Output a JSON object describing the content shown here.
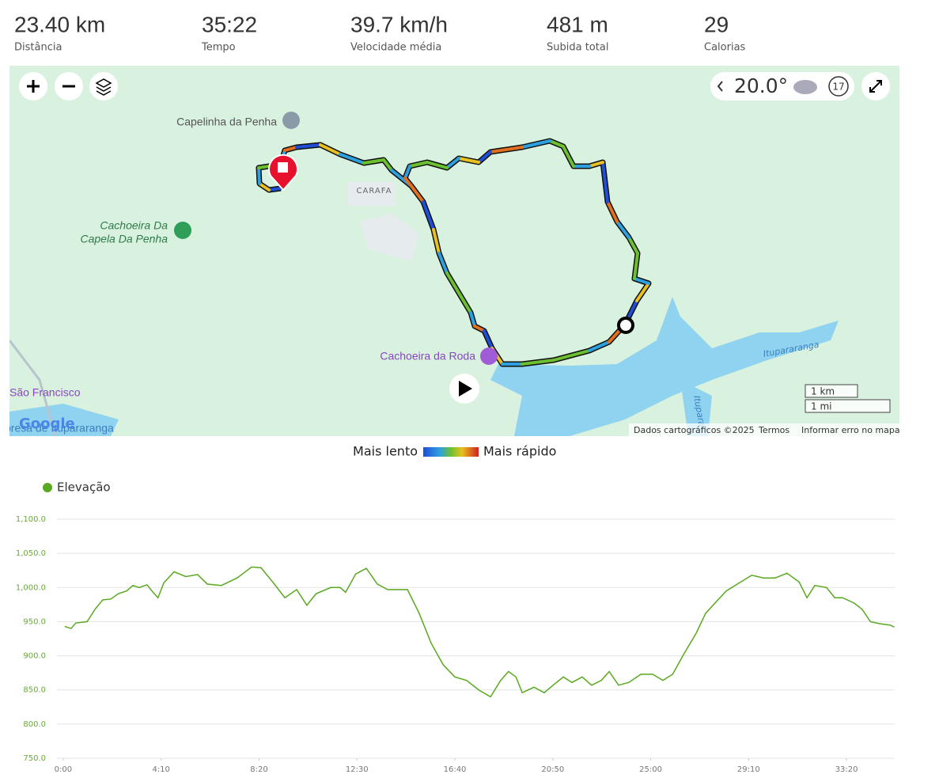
{
  "stats": [
    {
      "value": "23.40 km",
      "label": "Distância"
    },
    {
      "value": "35:22",
      "label": "Tempo"
    },
    {
      "value": "39.7 km/h",
      "label": "Velocidade média"
    },
    {
      "value": "481 m",
      "label": "Subida total"
    },
    {
      "value": "29",
      "label": "Calorias"
    }
  ],
  "map": {
    "places": [
      "Capelinha da Penha",
      "CARAFA",
      "Cachoeira Da",
      "Capela Da Penha",
      "Cachoeira da Roda",
      "São Francisco",
      "presa de Itupararanga",
      "Itupararanga",
      "Itupara"
    ],
    "weather": {
      "temp": "20.0°",
      "wind": "17"
    },
    "scale": [
      "1 km",
      "1 mi"
    ],
    "brand": "Google",
    "footer": [
      "Dados cartográficos ©2025",
      "Termos",
      "Informar erro no mapa"
    ],
    "speed_legend": [
      "Mais lento",
      "Mais rápido"
    ]
  },
  "chart_data": {
    "type": "line",
    "x": [
      4,
      20,
      32,
      61,
      81,
      101,
      121,
      141,
      162,
      178,
      194,
      214,
      228,
      242,
      257,
      283,
      313,
      343,
      368,
      404,
      444,
      481,
      505,
      535,
      566,
      596,
      622,
      646,
      683,
      707,
      721,
      747,
      774,
      802,
      828,
      848,
      879,
      909,
      939,
      970,
      1000,
      1030,
      1061,
      1091,
      1117,
      1137,
      1156,
      1172,
      1202,
      1228,
      1253,
      1277,
      1299,
      1325,
      1349,
      1374,
      1394,
      1418,
      1444,
      1475,
      1505,
      1531,
      1556,
      1586,
      1616,
      1640,
      1667,
      1693,
      1721,
      1758,
      1788,
      1818,
      1848,
      1879,
      1899,
      1919,
      1949,
      1970,
      1990,
      2020,
      2040,
      2061,
      2085,
      2111,
      2122
    ],
    "series": [
      {
        "name": "Elevação",
        "color": "#5aa820",
        "values": [
          943,
          940,
          948,
          950,
          968,
          982,
          983,
          991,
          995,
          1003,
          1000,
          1004,
          994,
          985,
          1007,
          1023,
          1016,
          1019,
          1005,
          1003,
          1014,
          1030,
          1029,
          1008,
          985,
          997,
          974,
          991,
          1000,
          1000,
          993,
          1020,
          1028,
          1005,
          997,
          997,
          997,
          962,
          919,
          887,
          869,
          864,
          850,
          840,
          864,
          877,
          869,
          846,
          854,
          846,
          858,
          869,
          861,
          869,
          857,
          864,
          877,
          857,
          861,
          873,
          873,
          864,
          873,
          904,
          933,
          962,
          979,
          995,
          1005,
          1018,
          1014,
          1014,
          1021,
          1008,
          985,
          1003,
          1000,
          985,
          985,
          977,
          968,
          950,
          947,
          945,
          942
        ]
      }
    ],
    "xlim": [
      -16,
      2123
    ],
    "ylim": [
      750,
      1100
    ],
    "xticks": [
      {
        "value": 0,
        "label": "0:00"
      },
      {
        "value": 250,
        "label": "4:10"
      },
      {
        "value": 500,
        "label": "8:20"
      },
      {
        "value": 750,
        "label": "12:30"
      },
      {
        "value": 1000,
        "label": "16:40"
      },
      {
        "value": 1250,
        "label": "20:50"
      },
      {
        "value": 1500,
        "label": "25:00"
      },
      {
        "value": 1750,
        "label": "29:10"
      },
      {
        "value": 2000,
        "label": "33:20"
      }
    ],
    "yticks": [
      {
        "value": 750,
        "label": "750.0"
      },
      {
        "value": 800,
        "label": "800.0"
      },
      {
        "value": 850,
        "label": "850.0"
      },
      {
        "value": 900,
        "label": "900.0"
      },
      {
        "value": 950,
        "label": "950.0"
      },
      {
        "value": 1000,
        "label": "1,000.0"
      },
      {
        "value": 1050,
        "label": "1,050.0"
      },
      {
        "value": 1100,
        "label": "1,100.0"
      }
    ],
    "grid": true
  }
}
